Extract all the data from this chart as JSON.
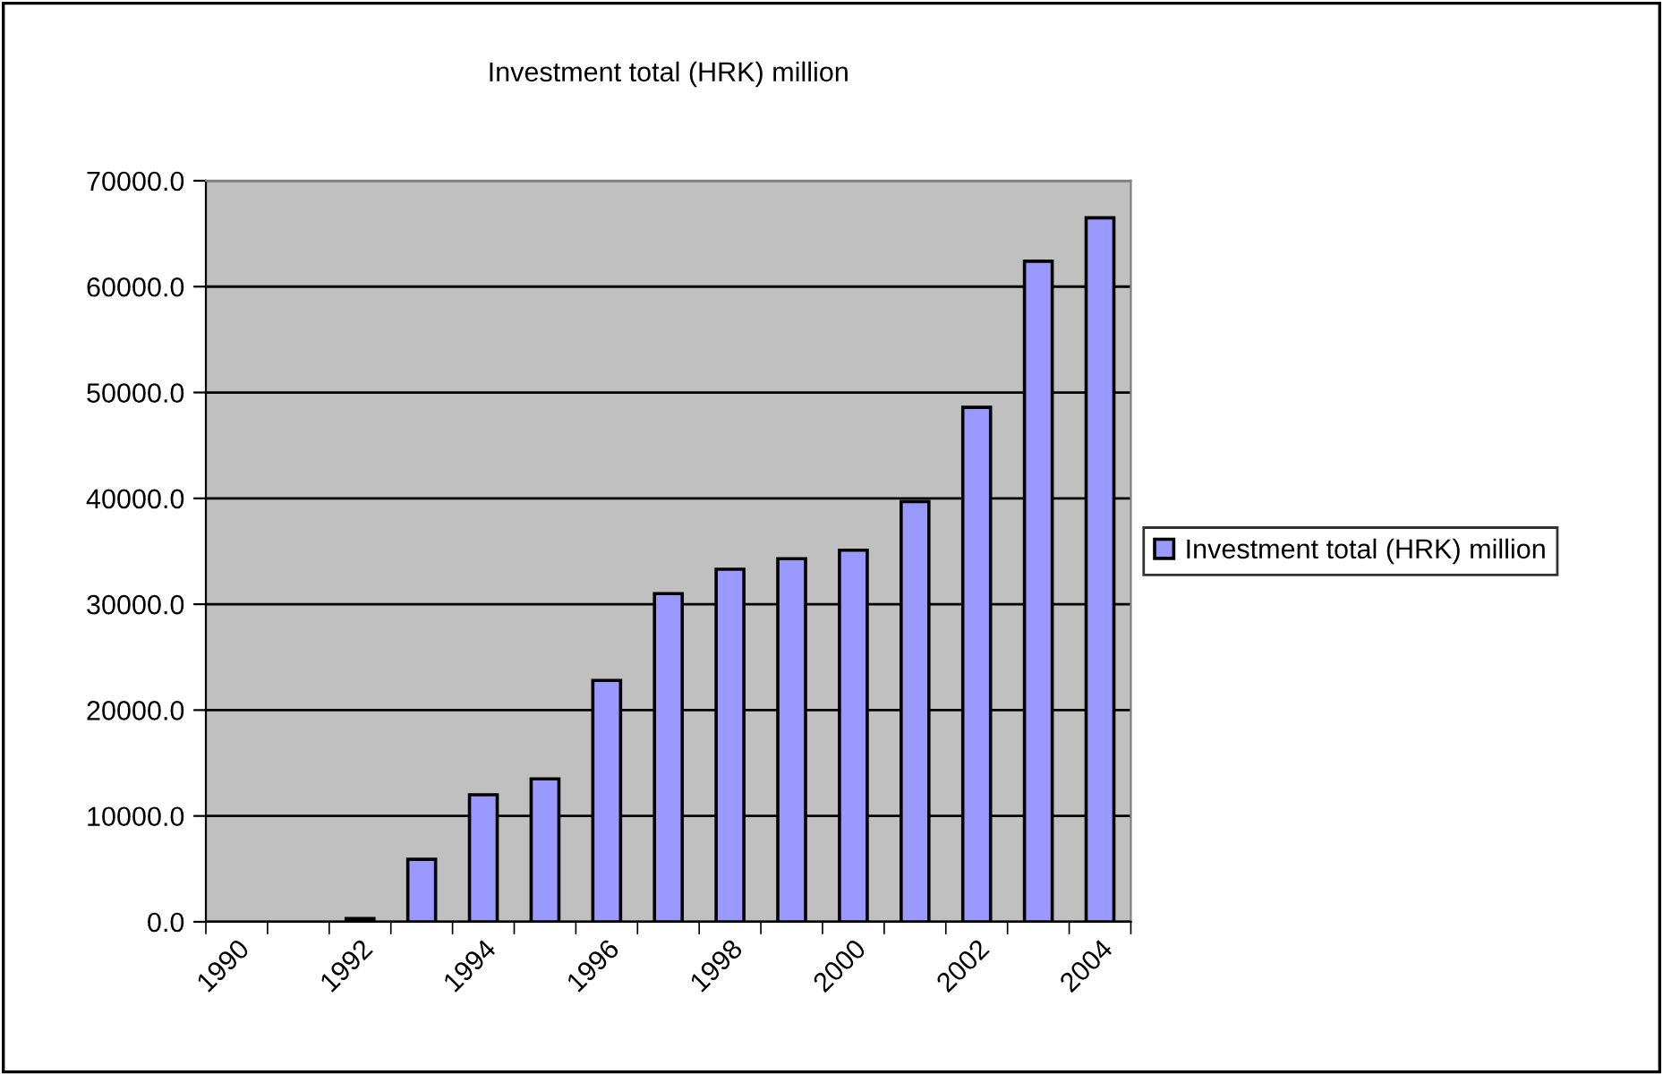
{
  "chart_data": {
    "type": "bar",
    "title": "Investment total (HRK) million",
    "categories": [
      "1990",
      null,
      "1992",
      null,
      "1994",
      null,
      "1996",
      null,
      "1998",
      null,
      "2000",
      null,
      "2002",
      null,
      "2004"
    ],
    "series": [
      {
        "name": "Investment total (HRK) million",
        "color": "#9999ff",
        "values": [
          null,
          null,
          300,
          5900,
          12000,
          13500,
          22800,
          31000,
          33300,
          34300,
          35100,
          39700,
          48600,
          62400,
          66500
        ]
      }
    ],
    "ylim": [
      0,
      70000
    ],
    "yticks": [
      {
        "value": 0,
        "label": "0.0"
      },
      {
        "value": 10000,
        "label": "10000.0"
      },
      {
        "value": 20000,
        "label": "20000.0"
      },
      {
        "value": 30000,
        "label": "30000.0"
      },
      {
        "value": 40000,
        "label": "40000.0"
      },
      {
        "value": 50000,
        "label": "50000.0"
      },
      {
        "value": 60000,
        "label": "60000.0"
      },
      {
        "value": 70000,
        "label": "70000.0"
      }
    ],
    "grid": "y",
    "legend": "right"
  }
}
